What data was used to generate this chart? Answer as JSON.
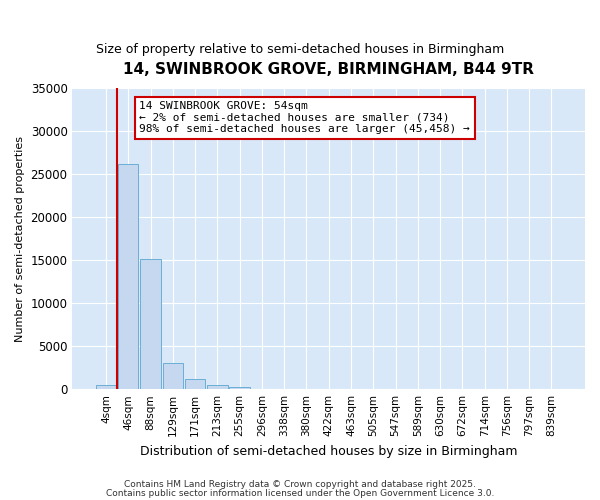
{
  "title": "14, SWINBROOK GROVE, BIRMINGHAM, B44 9TR",
  "subtitle": "Size of property relative to semi-detached houses in Birmingham",
  "xlabel": "Distribution of semi-detached houses by size in Birmingham",
  "ylabel": "Number of semi-detached properties",
  "annotation_title": "14 SWINBROOK GROVE: 54sqm",
  "annotation_line1": "← 2% of semi-detached houses are smaller (734)",
  "annotation_line2": "98% of semi-detached houses are larger (45,458) →",
  "footer1": "Contains HM Land Registry data © Crown copyright and database right 2025.",
  "footer2": "Contains public sector information licensed under the Open Government Licence 3.0.",
  "bar_values": [
    500,
    26200,
    15200,
    3100,
    1200,
    500,
    300,
    0,
    0,
    0,
    0,
    0,
    0,
    0,
    0,
    0,
    0,
    0,
    0,
    0,
    0
  ],
  "bar_labels": [
    "4sqm",
    "46sqm",
    "88sqm",
    "129sqm",
    "171sqm",
    "213sqm",
    "255sqm",
    "296sqm",
    "338sqm",
    "380sqm",
    "422sqm",
    "463sqm",
    "505sqm",
    "547sqm",
    "589sqm",
    "630sqm",
    "672sqm",
    "714sqm",
    "756sqm",
    "797sqm",
    "839sqm"
  ],
  "bar_color": "#c5d8f0",
  "bar_edgecolor": "#6baed6",
  "vline_x": 0.5,
  "vline_color": "#cc0000",
  "ylim": [
    0,
    35000
  ],
  "yticks": [
    0,
    5000,
    10000,
    15000,
    20000,
    25000,
    30000,
    35000
  ],
  "plot_bg_color": "#d8e8f8",
  "fig_bg_color": "#ffffff",
  "grid_color": "#ffffff",
  "annot_box_color": "#cc0000",
  "annot_box_bg": "#ffffff"
}
